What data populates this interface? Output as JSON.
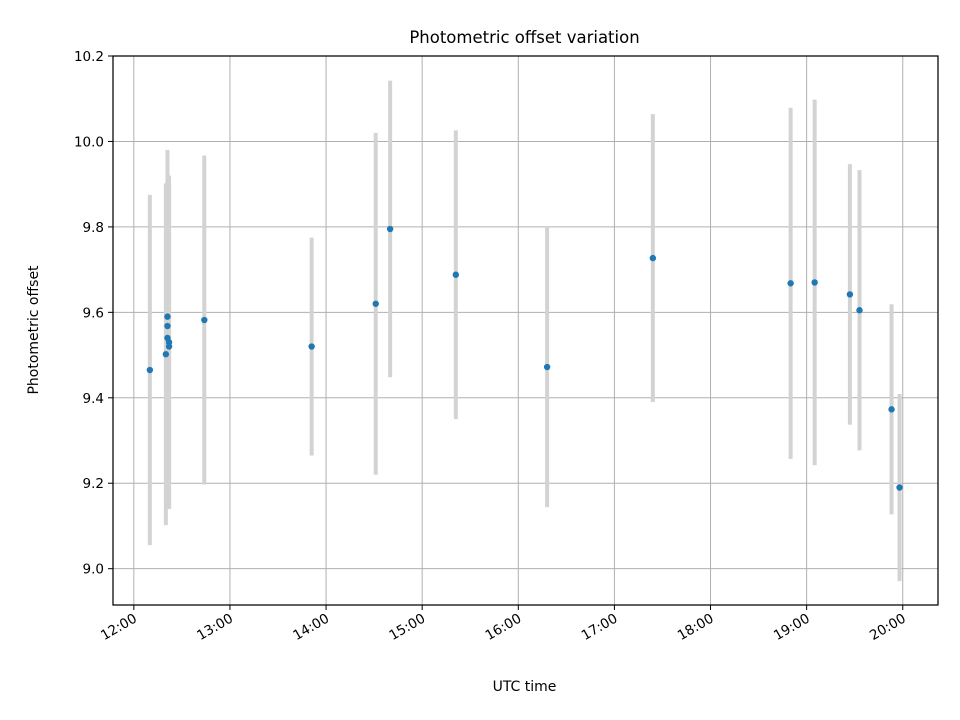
{
  "chart_data": {
    "type": "scatter",
    "title": "Photometric offset variation",
    "xlabel": "UTC time",
    "ylabel": "Photometric offset",
    "x_tick_labels": [
      "12:00",
      "13:00",
      "14:00",
      "15:00",
      "16:00",
      "17:00",
      "18:00",
      "19:00",
      "20:00"
    ],
    "y_tick_labels": [
      "9.0",
      "9.2",
      "9.4",
      "9.6",
      "9.8",
      "10.0",
      "10.2"
    ],
    "xlim": [
      "11:47",
      "20:22"
    ],
    "ylim": [
      8.915,
      10.2
    ],
    "grid": true,
    "colors": {
      "points": "#1f77b4",
      "errorbars": "#d3d3d3",
      "grid": "#b0b0b0"
    },
    "points": [
      {
        "x": "12:10",
        "y": 9.465,
        "err": 0.41
      },
      {
        "x": "12:20",
        "y": 9.502,
        "err": 0.4
      },
      {
        "x": "12:21",
        "y": 9.59,
        "err": 0.39
      },
      {
        "x": "12:21",
        "y": 9.568,
        "err": 0.34
      },
      {
        "x": "12:21",
        "y": 9.54,
        "err": 0.39
      },
      {
        "x": "12:22",
        "y": 9.53,
        "err": 0.39
      },
      {
        "x": "12:22",
        "y": 9.52,
        "err": 0.38
      },
      {
        "x": "12:44",
        "y": 9.582,
        "err": 0.385
      },
      {
        "x": "13:51",
        "y": 9.52,
        "err": 0.255
      },
      {
        "x": "14:31",
        "y": 9.62,
        "err": 0.4
      },
      {
        "x": "14:40",
        "y": 9.795,
        "err": 0.347
      },
      {
        "x": "15:21",
        "y": 9.688,
        "err": 0.338
      },
      {
        "x": "16:18",
        "y": 9.472,
        "err": 0.328
      },
      {
        "x": "17:24",
        "y": 9.727,
        "err": 0.337
      },
      {
        "x": "18:50",
        "y": 9.668,
        "err": 0.411
      },
      {
        "x": "19:05",
        "y": 9.67,
        "err": 0.428
      },
      {
        "x": "19:27",
        "y": 9.642,
        "err": 0.305
      },
      {
        "x": "19:33",
        "y": 9.605,
        "err": 0.328
      },
      {
        "x": "19:53",
        "y": 9.373,
        "err": 0.246
      },
      {
        "x": "19:58",
        "y": 9.19,
        "err": 0.219
      }
    ]
  }
}
